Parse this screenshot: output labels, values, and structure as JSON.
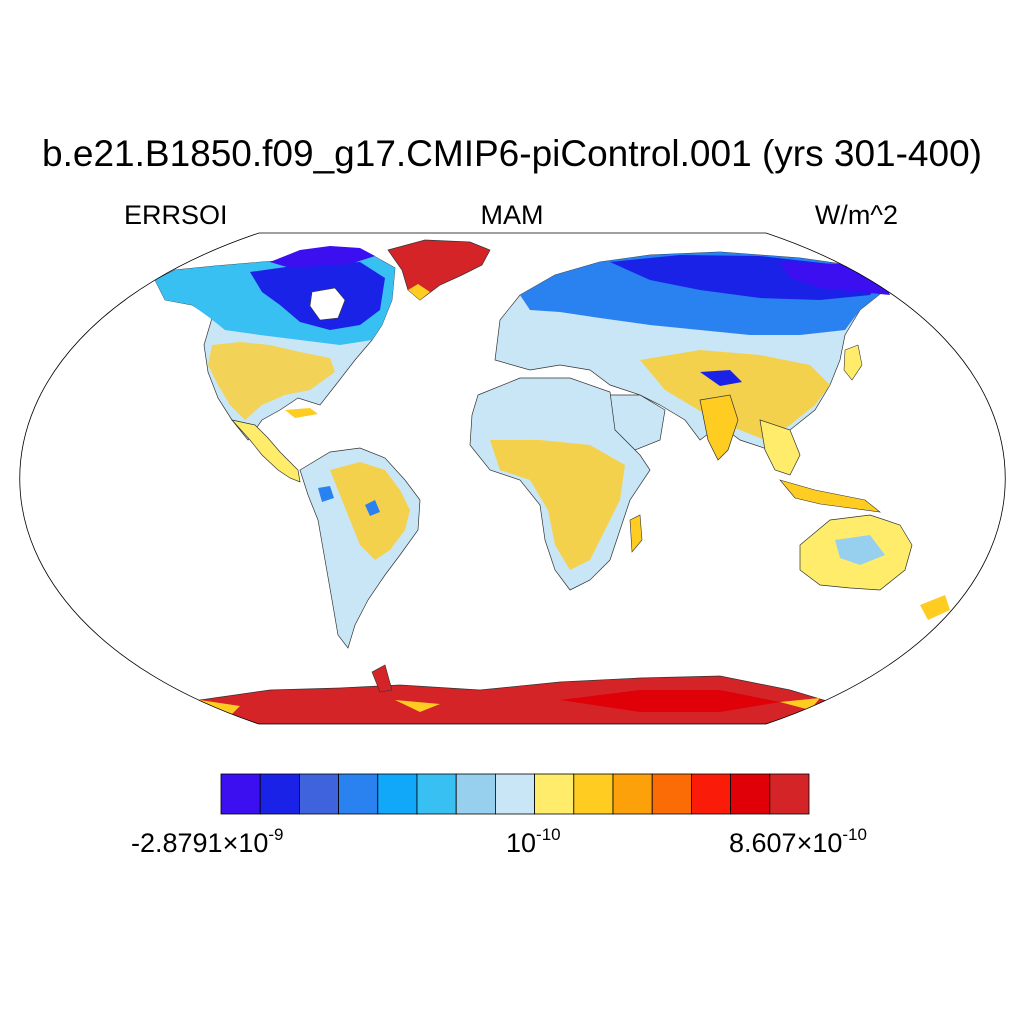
{
  "title": "b.e21.B1850.f09_g17.CMIP6-piControl.001 (yrs 301-400)",
  "subtitle": {
    "left": "ERRSOI",
    "center": "MAM",
    "right": "W/m^2"
  },
  "map": {
    "projection": "robinson-like",
    "land_color_scale": [
      "#3b0ff0",
      "#1a22e8",
      "#3f63dc",
      "#2a81f0",
      "#12a8fa",
      "#38c0f2",
      "#96d0ee",
      "#c9e6f6",
      "#ffec6a",
      "#ffcc22",
      "#fca10a",
      "#fc6c06",
      "#fa1c08",
      "#e00008",
      "#d42428"
    ]
  },
  "colorbar": {
    "labels": [
      {
        "mantissa": "-2.8791×10",
        "exponent": "-9"
      },
      {
        "mantissa": "10",
        "exponent": "-10"
      },
      {
        "mantissa": "8.607×10",
        "exponent": "-10"
      }
    ]
  }
}
